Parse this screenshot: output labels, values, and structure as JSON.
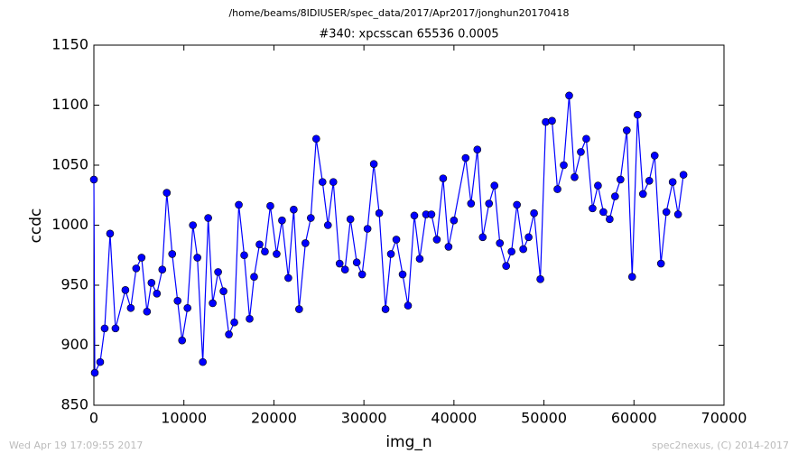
{
  "chart_data": {
    "type": "line",
    "header": "/home/beams/8IDIUSER/spec_data/2017/Apr2017/jonghun20170418",
    "title": "#340: xpcsscan 65536 0.0005",
    "xlabel": "img_n",
    "ylabel": "ccdc",
    "footer_left": "Wed Apr 19 17:09:55 2017",
    "footer_right": "spec2nexus, (C) 2014-2017",
    "xlim": [
      0,
      70000
    ],
    "xticks": [
      0,
      10000,
      20000,
      30000,
      40000,
      50000,
      60000,
      70000
    ],
    "ylim": [
      850,
      1150
    ],
    "yticks": [
      850,
      900,
      950,
      1000,
      1050,
      1100,
      1150
    ],
    "grid": false,
    "marker": "circle",
    "series": [
      {
        "color": "#0000ff",
        "x": [
          0,
          100,
          700,
          1200,
          1800,
          2400,
          3500,
          4100,
          4700,
          5300,
          5900,
          6400,
          7000,
          7600,
          8100,
          8700,
          9300,
          9800,
          10400,
          11000,
          11500,
          12100,
          12700,
          13200,
          13800,
          14400,
          15000,
          15600,
          16100,
          16700,
          17300,
          17800,
          18400,
          19000,
          19600,
          20300,
          20900,
          21600,
          22200,
          22800,
          23500,
          24100,
          24700,
          25400,
          26000,
          26600,
          27300,
          27900,
          28500,
          29200,
          29800,
          30400,
          31100,
          31700,
          32400,
          33000,
          33600,
          34300,
          34900,
          35600,
          36200,
          36900,
          37500,
          38100,
          38800,
          39400,
          40000,
          41300,
          41900,
          42600,
          43200,
          43900,
          44500,
          45100,
          45800,
          46400,
          47000,
          47700,
          48300,
          48900,
          49600,
          50200,
          50900,
          51500,
          52200,
          52800,
          53400,
          54100,
          54700,
          55400,
          56000,
          56600,
          57300,
          57900,
          58500,
          59200,
          59800,
          60400,
          61000,
          61700,
          62300,
          63000,
          63600,
          64300,
          64900,
          65500
        ],
        "values": [
          1038,
          877,
          886,
          914,
          993,
          914,
          946,
          931,
          964,
          973,
          928,
          952,
          943,
          963,
          1027,
          976,
          937,
          904,
          931,
          1000,
          973,
          886,
          1006,
          935,
          961,
          945,
          909,
          919,
          1017,
          975,
          922,
          957,
          984,
          978,
          1016,
          976,
          1004,
          956,
          1013,
          930,
          985,
          1006,
          1072,
          1036,
          1000,
          1036,
          968,
          963,
          1005,
          969,
          959,
          997,
          1051,
          1010,
          930,
          976,
          988,
          959,
          933,
          1008,
          972,
          1009,
          1009,
          988,
          1039,
          982,
          1004,
          1056,
          1018,
          1063,
          990,
          1018,
          1033,
          985,
          966,
          978,
          1017,
          980,
          990,
          1010,
          955,
          1086,
          1087,
          1030,
          1050,
          1108,
          1040,
          1061,
          1072,
          1014,
          1033,
          1011,
          1005,
          1024,
          1038,
          1079,
          957,
          1092,
          1026,
          1037,
          1058,
          968,
          1011,
          1036,
          1009,
          1042
        ]
      }
    ]
  }
}
